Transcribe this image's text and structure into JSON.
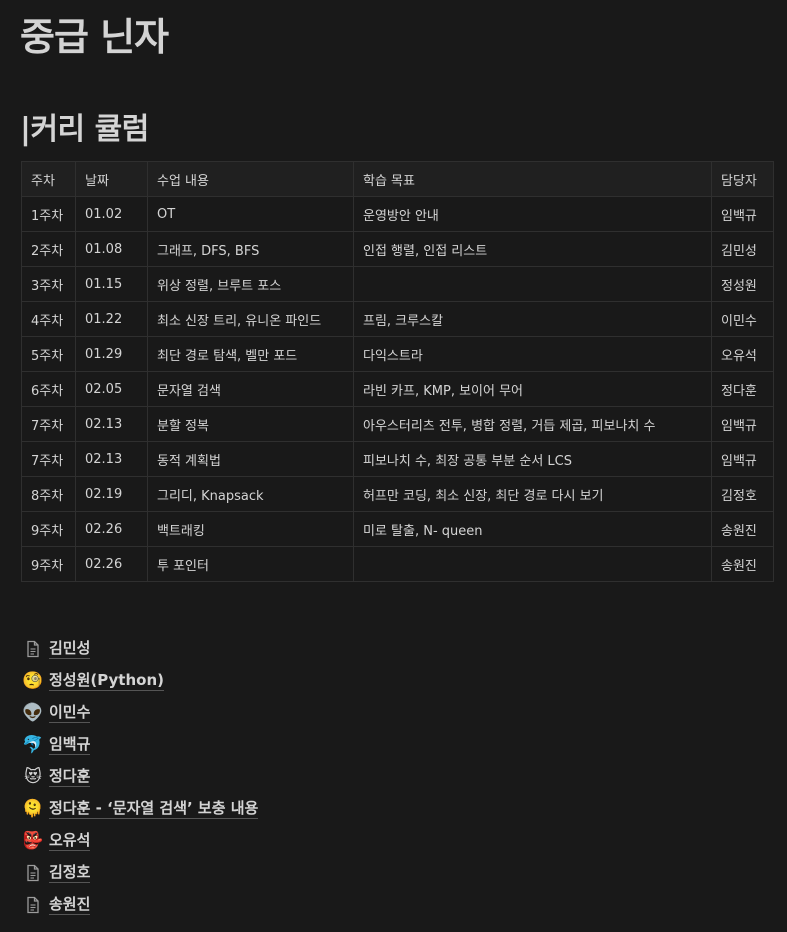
{
  "page": {
    "title": "중급 닌자",
    "section_heading": "|커리 큘럼"
  },
  "schedule": {
    "headers": [
      "주차",
      "날짜",
      "수업 내용",
      "학습 목표",
      "담당자"
    ],
    "rows": [
      [
        "1주차",
        "01.02",
        "OT",
        "운영방안 안내",
        "임백규"
      ],
      [
        "2주차",
        "01.08",
        "그래프, DFS, BFS",
        "인접 행렬, 인접 리스트",
        "김민성"
      ],
      [
        "3주차",
        "01.15",
        "위상 정렬, 브루트 포스",
        "",
        "정성원"
      ],
      [
        "4주차",
        "01.22",
        "최소 신장 트리, 유니온 파인드",
        "프림, 크루스칼",
        "이민수"
      ],
      [
        "5주차",
        "01.29",
        "최단 경로 탐색, 벨만 포드",
        "다익스트라",
        "오유석"
      ],
      [
        "6주차",
        "02.05",
        "문자열 검색",
        "라빈 카프, KMP, 보이어 무어",
        "정다훈"
      ],
      [
        "7주차",
        "02.13",
        "분할 정복",
        "아우스터리츠 전투, 병합 정렬, 거듭 제곱, 피보나치 수",
        "임백규"
      ],
      [
        "7주차",
        "02.13",
        "동적 계획법",
        "피보나치 수, 최장 공통 부분 순서 LCS",
        "임백규"
      ],
      [
        "8주차",
        "02.19",
        "그리디, Knapsack",
        "허프만 코딩, 최소 신장, 최단 경로 다시 보기",
        "김정호"
      ],
      [
        "9주차",
        "02.26",
        "백트래킹",
        "미로 탈출, N- queen",
        "송원진"
      ],
      [
        "9주차",
        "02.26",
        "투 포인터",
        "",
        "송원진"
      ]
    ]
  },
  "subpages": [
    {
      "icon": "document-icon",
      "emoji": "",
      "label": "김민성"
    },
    {
      "icon": "monocle-face-icon",
      "emoji": "🧐",
      "label": "정성원(Python)"
    },
    {
      "icon": "alien-icon",
      "emoji": "👽",
      "label": "이민수"
    },
    {
      "icon": "dolphin-icon",
      "emoji": "🐬",
      "label": "임백규"
    },
    {
      "icon": "heart-eyes-cat-icon",
      "emoji": "😻",
      "label": "정다훈"
    },
    {
      "icon": "melting-face-icon",
      "emoji": "🫠",
      "label": "정다훈 - ‘문자열 검색’ 보충 내용"
    },
    {
      "icon": "goblin-mask-icon",
      "emoji": "👺",
      "label": "오유석"
    },
    {
      "icon": "document-icon",
      "emoji": "",
      "label": "김정호"
    },
    {
      "icon": "document-icon",
      "emoji": "",
      "label": "송원진"
    }
  ]
}
